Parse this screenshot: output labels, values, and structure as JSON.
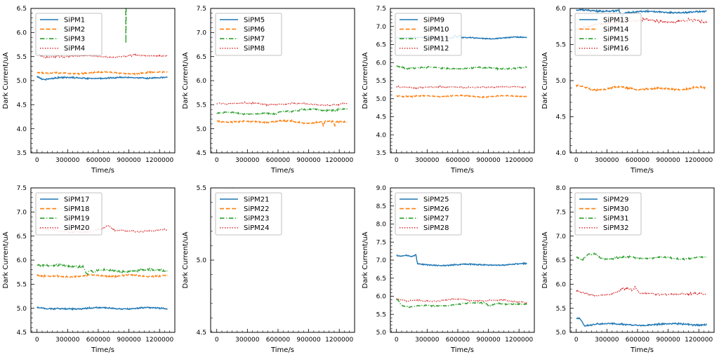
{
  "figure": {
    "background": "#ffffff",
    "palette": {
      "blue": "#1f77b4",
      "orange": "#ff7f0e",
      "green": "#2ca02c",
      "red": "#d62728"
    },
    "grid": "off",
    "rows": 2,
    "cols": 4
  },
  "chart_data": [
    {
      "type": "line",
      "xlabel": "Time/s",
      "ylabel": "Dark Current/uA",
      "xlim": [
        -60000,
        1350000
      ],
      "ylim": [
        3.5,
        6.5
      ],
      "xticks": [
        0,
        300000,
        600000,
        900000,
        1200000
      ],
      "x_minor_step": 50000,
      "ytick_step": 0.5,
      "y_minor_step": 0.1,
      "legend_position": "upper left",
      "series": [
        {
          "name": "SiPM1",
          "color": "#1f77b4",
          "linestyle": "solid",
          "noise": 0.015,
          "trend_x": [
            0,
            60000,
            200000,
            600000,
            1000000,
            1280000
          ],
          "trend_y": [
            5.1,
            5.03,
            5.05,
            5.06,
            5.05,
            5.08
          ]
        },
        {
          "name": "SiPM2",
          "color": "#ff7f0e",
          "linestyle": "dashed",
          "noise": 0.015,
          "trend_x": [
            0,
            100000,
            400000,
            700000,
            1000000,
            1280000
          ],
          "trend_y": [
            5.18,
            5.14,
            5.16,
            5.17,
            5.15,
            5.18
          ]
        },
        {
          "name": "SiPM3",
          "color": "#2ca02c",
          "linestyle": "dashdot",
          "noise": 0,
          "trend_x": [
            866000,
            871000,
            876000
          ],
          "trend_y": [
            7.2,
            5.62,
            7.2
          ]
        },
        {
          "name": "SiPM4",
          "color": "#d62728",
          "linestyle": "dotted",
          "noise": 0.018,
          "trend_x": [
            0,
            80000,
            200000,
            500000,
            800000,
            1100000,
            1280000
          ],
          "trend_y": [
            5.55,
            5.47,
            5.52,
            5.5,
            5.5,
            5.52,
            5.53
          ]
        }
      ]
    },
    {
      "type": "line",
      "xlabel": "Time/s",
      "ylabel": "Dark Current/uA",
      "xlim": [
        -60000,
        1350000
      ],
      "ylim": [
        4.5,
        7.5
      ],
      "xticks": [
        0,
        300000,
        600000,
        900000,
        1200000
      ],
      "x_minor_step": 50000,
      "ytick_step": 0.5,
      "y_minor_step": 0.1,
      "legend_position": "upper left",
      "series": [
        {
          "name": "SiPM5",
          "color": "#1f77b4",
          "linestyle": "solid",
          "noise": 0,
          "trend_x": [],
          "trend_y": []
        },
        {
          "name": "SiPM6",
          "color": "#ff7f0e",
          "linestyle": "dashed",
          "noise": 0.018,
          "trend_x": [
            0,
            300000,
            600000,
            900000,
            1030000,
            1045000,
            1060000,
            1140000,
            1155000,
            1170000,
            1280000
          ],
          "trend_y": [
            5.16,
            5.14,
            5.16,
            5.13,
            5.14,
            5.04,
            5.15,
            5.14,
            5.05,
            5.15,
            5.16
          ]
        },
        {
          "name": "SiPM7",
          "color": "#2ca02c",
          "linestyle": "dashdot",
          "noise": 0.018,
          "trend_x": [
            0,
            300000,
            590000,
            620000,
            900000,
            1280000
          ],
          "trend_y": [
            5.33,
            5.32,
            5.3,
            5.37,
            5.39,
            5.4
          ]
        },
        {
          "name": "SiPM8",
          "color": "#d62728",
          "linestyle": "dotted",
          "noise": 0.018,
          "trend_x": [
            0,
            200000,
            600000,
            1000000,
            1280000
          ],
          "trend_y": [
            5.54,
            5.52,
            5.52,
            5.5,
            5.52
          ]
        }
      ]
    },
    {
      "type": "line",
      "xlabel": "Time/s",
      "ylabel": "Dark Current/uA",
      "xlim": [
        -60000,
        1350000
      ],
      "ylim": [
        3.5,
        7.5
      ],
      "xticks": [
        0,
        300000,
        600000,
        900000,
        1200000
      ],
      "x_minor_step": 50000,
      "ytick_step": 0.5,
      "y_minor_step": 0.1,
      "legend_position": "upper left",
      "series": [
        {
          "name": "SiPM9",
          "color": "#1f77b4",
          "linestyle": "solid",
          "noise": 0.015,
          "trend_x": [
            0,
            300000,
            555000,
            575000,
            595000,
            615000,
            640000,
            900000,
            1280000
          ],
          "trend_y": [
            6.7,
            6.68,
            6.69,
            6.77,
            6.68,
            6.75,
            6.68,
            6.67,
            6.7
          ]
        },
        {
          "name": "SiPM10",
          "color": "#ff7f0e",
          "linestyle": "dashed",
          "noise": 0.018,
          "trend_x": [
            0,
            150000,
            500000,
            900000,
            1280000
          ],
          "trend_y": [
            5.09,
            5.06,
            5.08,
            5.06,
            5.08
          ]
        },
        {
          "name": "SiPM11",
          "color": "#2ca02c",
          "linestyle": "dashdot",
          "noise": 0.022,
          "trend_x": [
            0,
            100000,
            600000,
            1000000,
            1280000
          ],
          "trend_y": [
            5.92,
            5.85,
            5.85,
            5.84,
            5.87
          ]
        },
        {
          "name": "SiPM12",
          "color": "#d62728",
          "linestyle": "dotted",
          "noise": 0.018,
          "trend_x": [
            0,
            200000,
            600000,
            1000000,
            1280000
          ],
          "trend_y": [
            5.35,
            5.3,
            5.33,
            5.31,
            5.34
          ]
        }
      ]
    },
    {
      "type": "line",
      "xlabel": "Time/s",
      "ylabel": "Dark Current/uA",
      "xlim": [
        -60000,
        1350000
      ],
      "ylim": [
        4.0,
        6.0
      ],
      "xticks": [
        0,
        300000,
        600000,
        900000,
        1200000
      ],
      "x_minor_step": 50000,
      "ytick_step": 0.5,
      "y_minor_step": 0.1,
      "legend_position": "upper left",
      "series": [
        {
          "name": "SiPM13",
          "color": "#1f77b4",
          "linestyle": "solid",
          "noise": 0.012,
          "trend_x": [
            0,
            200000,
            420000,
            445000,
            470000,
            700000,
            1000000,
            1280000
          ],
          "trend_y": [
            5.97,
            5.96,
            5.98,
            5.9,
            5.94,
            5.95,
            5.95,
            5.95
          ]
        },
        {
          "name": "SiPM14",
          "color": "#ff7f0e",
          "linestyle": "dashed",
          "noise": 0.015,
          "trend_x": [
            0,
            150000,
            400000,
            800000,
            1280000
          ],
          "trend_y": [
            4.92,
            4.88,
            4.9,
            4.88,
            4.9
          ]
        },
        {
          "name": "SiPM15",
          "color": "#2ca02c",
          "linestyle": "dashdot",
          "noise": 0,
          "trend_x": [],
          "trend_y": []
        },
        {
          "name": "SiPM16",
          "color": "#d62728",
          "linestyle": "dotted",
          "noise": 0.02,
          "trend_x": [
            0,
            150000,
            300000,
            450000,
            600000,
            800000,
            1000000,
            1280000
          ],
          "trend_y": [
            5.73,
            5.76,
            5.78,
            5.85,
            5.83,
            5.82,
            5.83,
            5.81
          ]
        }
      ]
    },
    {
      "type": "line",
      "xlabel": "Time/s",
      "ylabel": "Dark Current/uA",
      "xlim": [
        -60000,
        1350000
      ],
      "ylim": [
        4.5,
        7.5
      ],
      "xticks": [
        0,
        300000,
        600000,
        900000,
        1200000
      ],
      "x_minor_step": 50000,
      "ytick_step": 0.5,
      "y_minor_step": 0.1,
      "legend_position": "upper left",
      "series": [
        {
          "name": "SiPM17",
          "color": "#1f77b4",
          "linestyle": "solid",
          "noise": 0.015,
          "trend_x": [
            0,
            100000,
            300000,
            700000,
            1280000
          ],
          "trend_y": [
            5.02,
            4.97,
            5.0,
            5.0,
            5.0
          ]
        },
        {
          "name": "SiPM18",
          "color": "#ff7f0e",
          "linestyle": "dashed",
          "noise": 0.018,
          "trend_x": [
            0,
            100000,
            400000,
            800000,
            1280000
          ],
          "trend_y": [
            5.7,
            5.65,
            5.67,
            5.68,
            5.67
          ]
        },
        {
          "name": "SiPM19",
          "color": "#2ca02c",
          "linestyle": "dashdot",
          "noise": 0.022,
          "trend_x": [
            0,
            150000,
            300000,
            450000,
            490000,
            520000,
            560000,
            600000,
            900000,
            1280000
          ],
          "trend_y": [
            5.92,
            5.88,
            5.87,
            5.88,
            5.72,
            5.8,
            5.75,
            5.78,
            5.78,
            5.79
          ]
        },
        {
          "name": "SiPM20",
          "color": "#d62728",
          "linestyle": "dotted",
          "noise": 0.018,
          "trend_x": [
            0,
            100000,
            300000,
            550000,
            650000,
            700000,
            750000,
            900000,
            1100000,
            1280000
          ],
          "trend_y": [
            6.65,
            6.62,
            6.6,
            6.6,
            6.65,
            6.7,
            6.62,
            6.62,
            6.6,
            6.62
          ]
        }
      ]
    },
    {
      "type": "line",
      "xlabel": "Time/s",
      "ylabel": "Dark Current/uA",
      "xlim": [
        -60000,
        1350000
      ],
      "ylim": [
        4.5,
        5.5
      ],
      "xticks": [
        0,
        300000,
        600000,
        900000,
        1200000
      ],
      "x_minor_step": 50000,
      "ytick_step": 0.5,
      "y_minor_step": 0.1,
      "legend_position": "upper left",
      "series": [
        {
          "name": "SiPM21",
          "color": "#1f77b4",
          "linestyle": "solid",
          "noise": 0,
          "trend_x": [],
          "trend_y": []
        },
        {
          "name": "SiPM22",
          "color": "#ff7f0e",
          "linestyle": "dashed",
          "noise": 0,
          "trend_x": [],
          "trend_y": []
        },
        {
          "name": "SiPM23",
          "color": "#2ca02c",
          "linestyle": "dashdot",
          "noise": 0,
          "trend_x": [
            142000,
            152000,
            162000
          ],
          "trend_y": [
            5.56,
            5.49,
            5.56
          ]
        },
        {
          "name": "SiPM24",
          "color": "#d62728",
          "linestyle": "dotted",
          "noise": 0,
          "trend_x": [],
          "trend_y": []
        }
      ]
    },
    {
      "type": "line",
      "xlabel": "Time/s",
      "ylabel": "Dark Current/uA",
      "xlim": [
        -60000,
        1350000
      ],
      "ylim": [
        5.0,
        9.0
      ],
      "xticks": [
        0,
        300000,
        600000,
        900000,
        1200000
      ],
      "x_minor_step": 50000,
      "ytick_step": 0.5,
      "y_minor_step": 0.1,
      "legend_position": "upper left",
      "series": [
        {
          "name": "SiPM25",
          "color": "#1f77b4",
          "linestyle": "solid",
          "noise": 0.02,
          "trend_x": [
            0,
            50000,
            100000,
            150000,
            190000,
            205000,
            400000,
            800000,
            1280000
          ],
          "trend_y": [
            7.13,
            7.1,
            7.12,
            7.08,
            7.13,
            6.88,
            6.87,
            6.87,
            6.89
          ]
        },
        {
          "name": "SiPM26",
          "color": "#ff7f0e",
          "linestyle": "dashed",
          "noise": 0,
          "trend_x": [],
          "trend_y": []
        },
        {
          "name": "SiPM27",
          "color": "#2ca02c",
          "linestyle": "dashdot",
          "noise": 0.02,
          "trend_x": [
            0,
            60000,
            120000,
            300000,
            600000,
            870000,
            900000,
            990000,
            1100000,
            1280000
          ],
          "trend_y": [
            5.95,
            5.75,
            5.7,
            5.73,
            5.77,
            5.83,
            5.75,
            5.82,
            5.76,
            5.78
          ]
        },
        {
          "name": "SiPM28",
          "color": "#d62728",
          "linestyle": "dotted",
          "noise": 0.02,
          "trend_x": [
            0,
            100000,
            300000,
            500000,
            600000,
            700000,
            900000,
            1100000,
            1280000
          ],
          "trend_y": [
            5.95,
            5.87,
            5.86,
            5.9,
            5.91,
            5.88,
            5.9,
            5.86,
            5.84
          ]
        }
      ]
    },
    {
      "type": "line",
      "xlabel": "Time/s",
      "ylabel": "Dark Current/uA",
      "xlim": [
        -60000,
        1350000
      ],
      "ylim": [
        5.0,
        8.0
      ],
      "xticks": [
        0,
        300000,
        600000,
        900000,
        1200000
      ],
      "x_minor_step": 50000,
      "ytick_step": 0.5,
      "y_minor_step": 0.1,
      "legend_position": "upper left",
      "series": [
        {
          "name": "SiPM29",
          "color": "#1f77b4",
          "linestyle": "solid",
          "noise": 0.018,
          "trend_x": [
            0,
            40000,
            80000,
            200000,
            600000,
            1280000
          ],
          "trend_y": [
            5.32,
            5.3,
            5.15,
            5.17,
            5.16,
            5.17
          ]
        },
        {
          "name": "SiPM30",
          "color": "#ff7f0e",
          "linestyle": "dashed",
          "noise": 0,
          "trend_x": [],
          "trend_y": []
        },
        {
          "name": "SiPM31",
          "color": "#2ca02c",
          "linestyle": "dashdot",
          "noise": 0.02,
          "trend_x": [
            0,
            60000,
            120000,
            180000,
            250000,
            400000,
            700000,
            1000000,
            1280000
          ],
          "trend_y": [
            6.58,
            6.5,
            6.6,
            6.62,
            6.53,
            6.55,
            6.55,
            6.54,
            6.55
          ]
        },
        {
          "name": "SiPM32",
          "color": "#d62728",
          "linestyle": "dotted",
          "noise": 0.02,
          "trend_x": [
            0,
            100000,
            250000,
            400000,
            450000,
            550000,
            580000,
            620000,
            700000,
            900000,
            1100000,
            1280000
          ],
          "trend_y": [
            5.85,
            5.8,
            5.78,
            5.82,
            5.9,
            5.87,
            5.92,
            5.8,
            5.82,
            5.8,
            5.78,
            5.8
          ]
        }
      ]
    }
  ]
}
